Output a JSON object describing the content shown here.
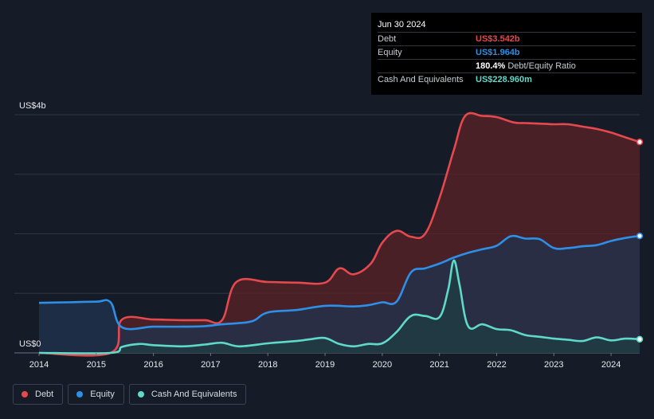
{
  "chart_data": {
    "type": "area",
    "title": "",
    "xlabel": "",
    "ylabel": "",
    "y_unit_top": "US$4b",
    "y_unit_bottom": "US$0",
    "ylim": [
      0,
      4
    ],
    "xlim": [
      2014.0,
      2024.5
    ],
    "x_ticks": [
      "2014",
      "2015",
      "2016",
      "2017",
      "2018",
      "2019",
      "2020",
      "2021",
      "2022",
      "2023",
      "2024"
    ],
    "series": [
      {
        "name": "Debt",
        "color": "#e5484d",
        "fill": "#5c2228",
        "x": [
          2014.0,
          2015.25,
          2015.45,
          2016.0,
          2016.5,
          2016.9,
          2017.2,
          2017.45,
          2018.0,
          2018.5,
          2019.0,
          2019.25,
          2019.5,
          2019.8,
          2020.0,
          2020.25,
          2020.5,
          2020.75,
          2021.0,
          2021.25,
          2021.45,
          2021.75,
          2022.0,
          2022.3,
          2022.5,
          2022.75,
          2023.0,
          2023.25,
          2023.5,
          2023.75,
          2024.0,
          2024.25,
          2024.5
        ],
        "values": [
          0.0,
          0.0,
          0.56,
          0.56,
          0.55,
          0.55,
          0.55,
          1.19,
          1.19,
          1.18,
          1.18,
          1.42,
          1.32,
          1.5,
          1.85,
          2.05,
          1.95,
          2.0,
          2.6,
          3.4,
          3.98,
          3.98,
          3.96,
          3.87,
          3.86,
          3.85,
          3.84,
          3.84,
          3.8,
          3.76,
          3.7,
          3.62,
          3.542
        ]
      },
      {
        "name": "Equity",
        "color": "#2d8fe6",
        "fill": "#1f3350",
        "x": [
          2014.0,
          2014.5,
          2015.0,
          2015.25,
          2015.45,
          2016.0,
          2016.5,
          2016.9,
          2017.2,
          2017.5,
          2017.75,
          2018.0,
          2018.5,
          2019.0,
          2019.5,
          2019.75,
          2020.0,
          2020.25,
          2020.5,
          2020.75,
          2021.0,
          2021.25,
          2021.5,
          2021.75,
          2022.0,
          2022.25,
          2022.5,
          2022.75,
          2023.0,
          2023.25,
          2023.5,
          2023.75,
          2024.0,
          2024.25,
          2024.5
        ],
        "values": [
          0.84,
          0.85,
          0.86,
          0.85,
          0.43,
          0.44,
          0.44,
          0.45,
          0.48,
          0.5,
          0.54,
          0.68,
          0.72,
          0.79,
          0.78,
          0.8,
          0.85,
          0.86,
          1.35,
          1.42,
          1.5,
          1.6,
          1.68,
          1.74,
          1.8,
          1.96,
          1.92,
          1.91,
          1.76,
          1.76,
          1.79,
          1.81,
          1.88,
          1.93,
          1.964
        ]
      },
      {
        "name": "Cash And Equivalents",
        "color": "#5fd9c8",
        "fill": "#1d3e42",
        "x": [
          2014.0,
          2015.25,
          2015.45,
          2015.75,
          2016.0,
          2016.5,
          2016.9,
          2017.2,
          2017.5,
          2018.0,
          2018.5,
          2018.75,
          2019.0,
          2019.25,
          2019.5,
          2019.75,
          2020.0,
          2020.25,
          2020.5,
          2020.75,
          2021.0,
          2021.15,
          2021.25,
          2021.35,
          2021.5,
          2021.75,
          2022.0,
          2022.25,
          2022.5,
          2022.75,
          2023.0,
          2023.25,
          2023.5,
          2023.75,
          2024.0,
          2024.25,
          2024.5
        ],
        "values": [
          0.0,
          0.0,
          0.1,
          0.15,
          0.13,
          0.11,
          0.14,
          0.17,
          0.11,
          0.16,
          0.2,
          0.23,
          0.25,
          0.15,
          0.11,
          0.15,
          0.16,
          0.35,
          0.62,
          0.62,
          0.6,
          1.05,
          1.55,
          1.15,
          0.45,
          0.48,
          0.4,
          0.38,
          0.3,
          0.27,
          0.24,
          0.22,
          0.2,
          0.26,
          0.21,
          0.24,
          0.229
        ]
      }
    ]
  },
  "tooltip": {
    "date": "Jun 30 2024",
    "rows": [
      {
        "label": "Debt",
        "value": "US$3.542b",
        "color": "#e5484d",
        "extra": ""
      },
      {
        "label": "Equity",
        "value": "US$1.964b",
        "color": "#2d8fe6",
        "extra": ""
      },
      {
        "label": "",
        "value": "180.4%",
        "color": "#ffffff",
        "extra": "Debt/Equity Ratio"
      },
      {
        "label": "Cash And Equivalents",
        "value": "US$228.960m",
        "color": "#5fd9c8",
        "extra": ""
      }
    ]
  },
  "legend": [
    {
      "label": "Debt",
      "color": "#e5484d"
    },
    {
      "label": "Equity",
      "color": "#2d8fe6"
    },
    {
      "label": "Cash And Equivalents",
      "color": "#5fd9c8"
    }
  ]
}
